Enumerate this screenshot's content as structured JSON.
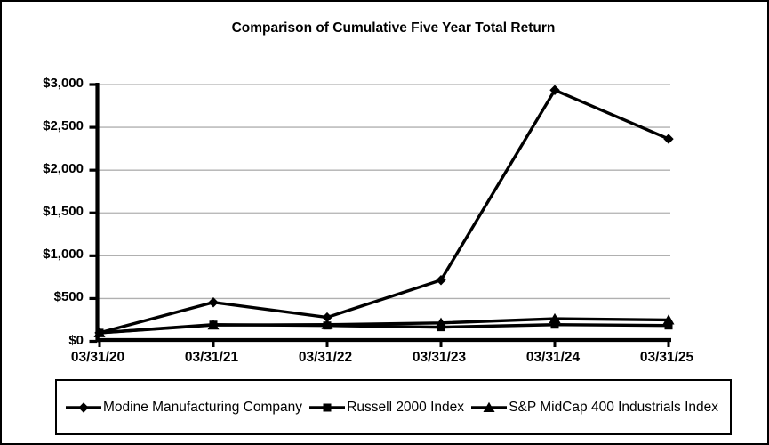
{
  "chart_data": {
    "type": "line",
    "title": "Comparison of Cumulative Five Year Total Return",
    "xlabel": "",
    "ylabel": "",
    "categories": [
      "03/31/20",
      "03/31/21",
      "03/31/22",
      "03/31/23",
      "03/31/24",
      "03/31/25"
    ],
    "series": [
      {
        "name": "Modine Manufacturing Company",
        "marker": "diamond",
        "values": [
          100,
          455,
          280,
          715,
          2935,
          2365
        ]
      },
      {
        "name": "Russell 2000 Index",
        "marker": "square",
        "values": [
          100,
          195,
          185,
          165,
          195,
          185
        ]
      },
      {
        "name": "S&P MidCap 400 Industrials Index",
        "marker": "triangle",
        "values": [
          100,
          190,
          195,
          215,
          265,
          250
        ]
      }
    ],
    "y_ticks": [
      {
        "label": "$0",
        "value": 0
      },
      {
        "label": "$500",
        "value": 500
      },
      {
        "label": "$1,000",
        "value": 1000
      },
      {
        "label": "$1,500",
        "value": 1500
      },
      {
        "label": "$2,000",
        "value": 2000
      },
      {
        "label": "$2,500",
        "value": 2500
      },
      {
        "label": "$3,000",
        "value": 3000
      }
    ],
    "ylim": [
      0,
      3000
    ],
    "grid": "horizontal",
    "legend_position": "bottom",
    "colors": {
      "series": "#000000",
      "gridline": "#b0b0b0",
      "background": "#ffffff",
      "border": "#000000"
    }
  }
}
